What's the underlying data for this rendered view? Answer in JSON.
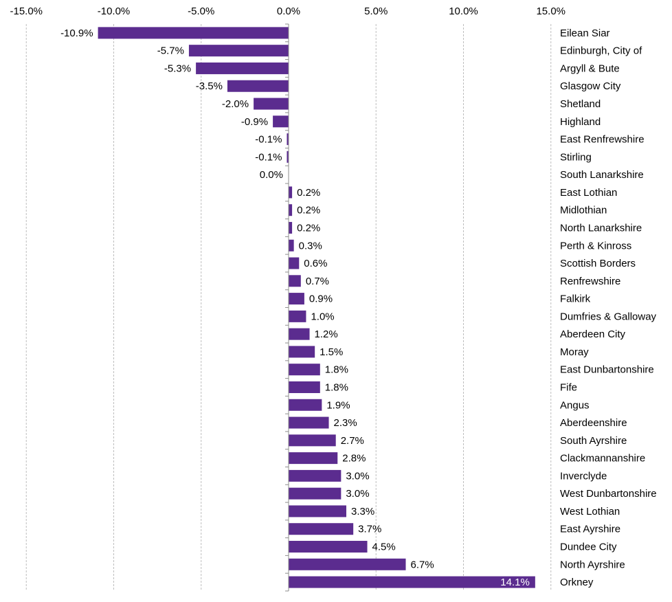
{
  "chart_data": {
    "type": "bar",
    "orientation": "horizontal",
    "title": "",
    "xlabel": "",
    "ylabel": "",
    "xlim": [
      -15,
      15
    ],
    "x_ticks": [
      "-15.0%",
      "-10.0%",
      "-5.0%",
      "0.0%",
      "5.0%",
      "10.0%",
      "15.0%"
    ],
    "x_tick_values": [
      -15,
      -10,
      -5,
      0,
      5,
      10,
      15
    ],
    "grid": "vertical dashed",
    "bar_color": "#5B2C8F",
    "categories": [
      "Eilean Siar",
      "Edinburgh, City of",
      "Argyll & Bute",
      "Glasgow City",
      "Shetland",
      "Highland",
      "East Renfrewshire",
      "Stirling",
      "South Lanarkshire",
      "East Lothian",
      "Midlothian",
      "North Lanarkshire",
      "Perth & Kinross",
      "Scottish Borders",
      "Renfrewshire",
      "Falkirk",
      "Dumfries & Galloway",
      "Aberdeen City",
      "Moray",
      "East Dunbartonshire",
      "Fife",
      "Angus",
      "Aberdeenshire",
      "South Ayrshire",
      "Clackmannanshire",
      "Inverclyde",
      "West Dunbartonshire",
      "West Lothian",
      "East Ayrshire",
      "Dundee City",
      "North Ayrshire",
      "Orkney"
    ],
    "values": [
      -10.9,
      -5.7,
      -5.3,
      -3.5,
      -2.0,
      -0.9,
      -0.1,
      -0.1,
      0.0,
      0.2,
      0.2,
      0.2,
      0.3,
      0.6,
      0.7,
      0.9,
      1.0,
      1.2,
      1.5,
      1.8,
      1.8,
      1.9,
      2.3,
      2.7,
      2.8,
      3.0,
      3.0,
      3.3,
      3.7,
      4.5,
      6.7,
      14.1
    ],
    "labels": [
      "-10.9%",
      "-5.7%",
      "-5.3%",
      "-3.5%",
      "-2.0%",
      "-0.9%",
      "-0.1%",
      "-0.1%",
      "0.0%",
      "0.2%",
      "0.2%",
      "0.2%",
      "0.3%",
      "0.6%",
      "0.7%",
      "0.9%",
      "1.0%",
      "1.2%",
      "1.5%",
      "1.8%",
      "1.8%",
      "1.9%",
      "2.3%",
      "2.7%",
      "2.8%",
      "3.0%",
      "3.0%",
      "3.3%",
      "3.7%",
      "4.5%",
      "6.7%",
      "14.1%"
    ]
  }
}
